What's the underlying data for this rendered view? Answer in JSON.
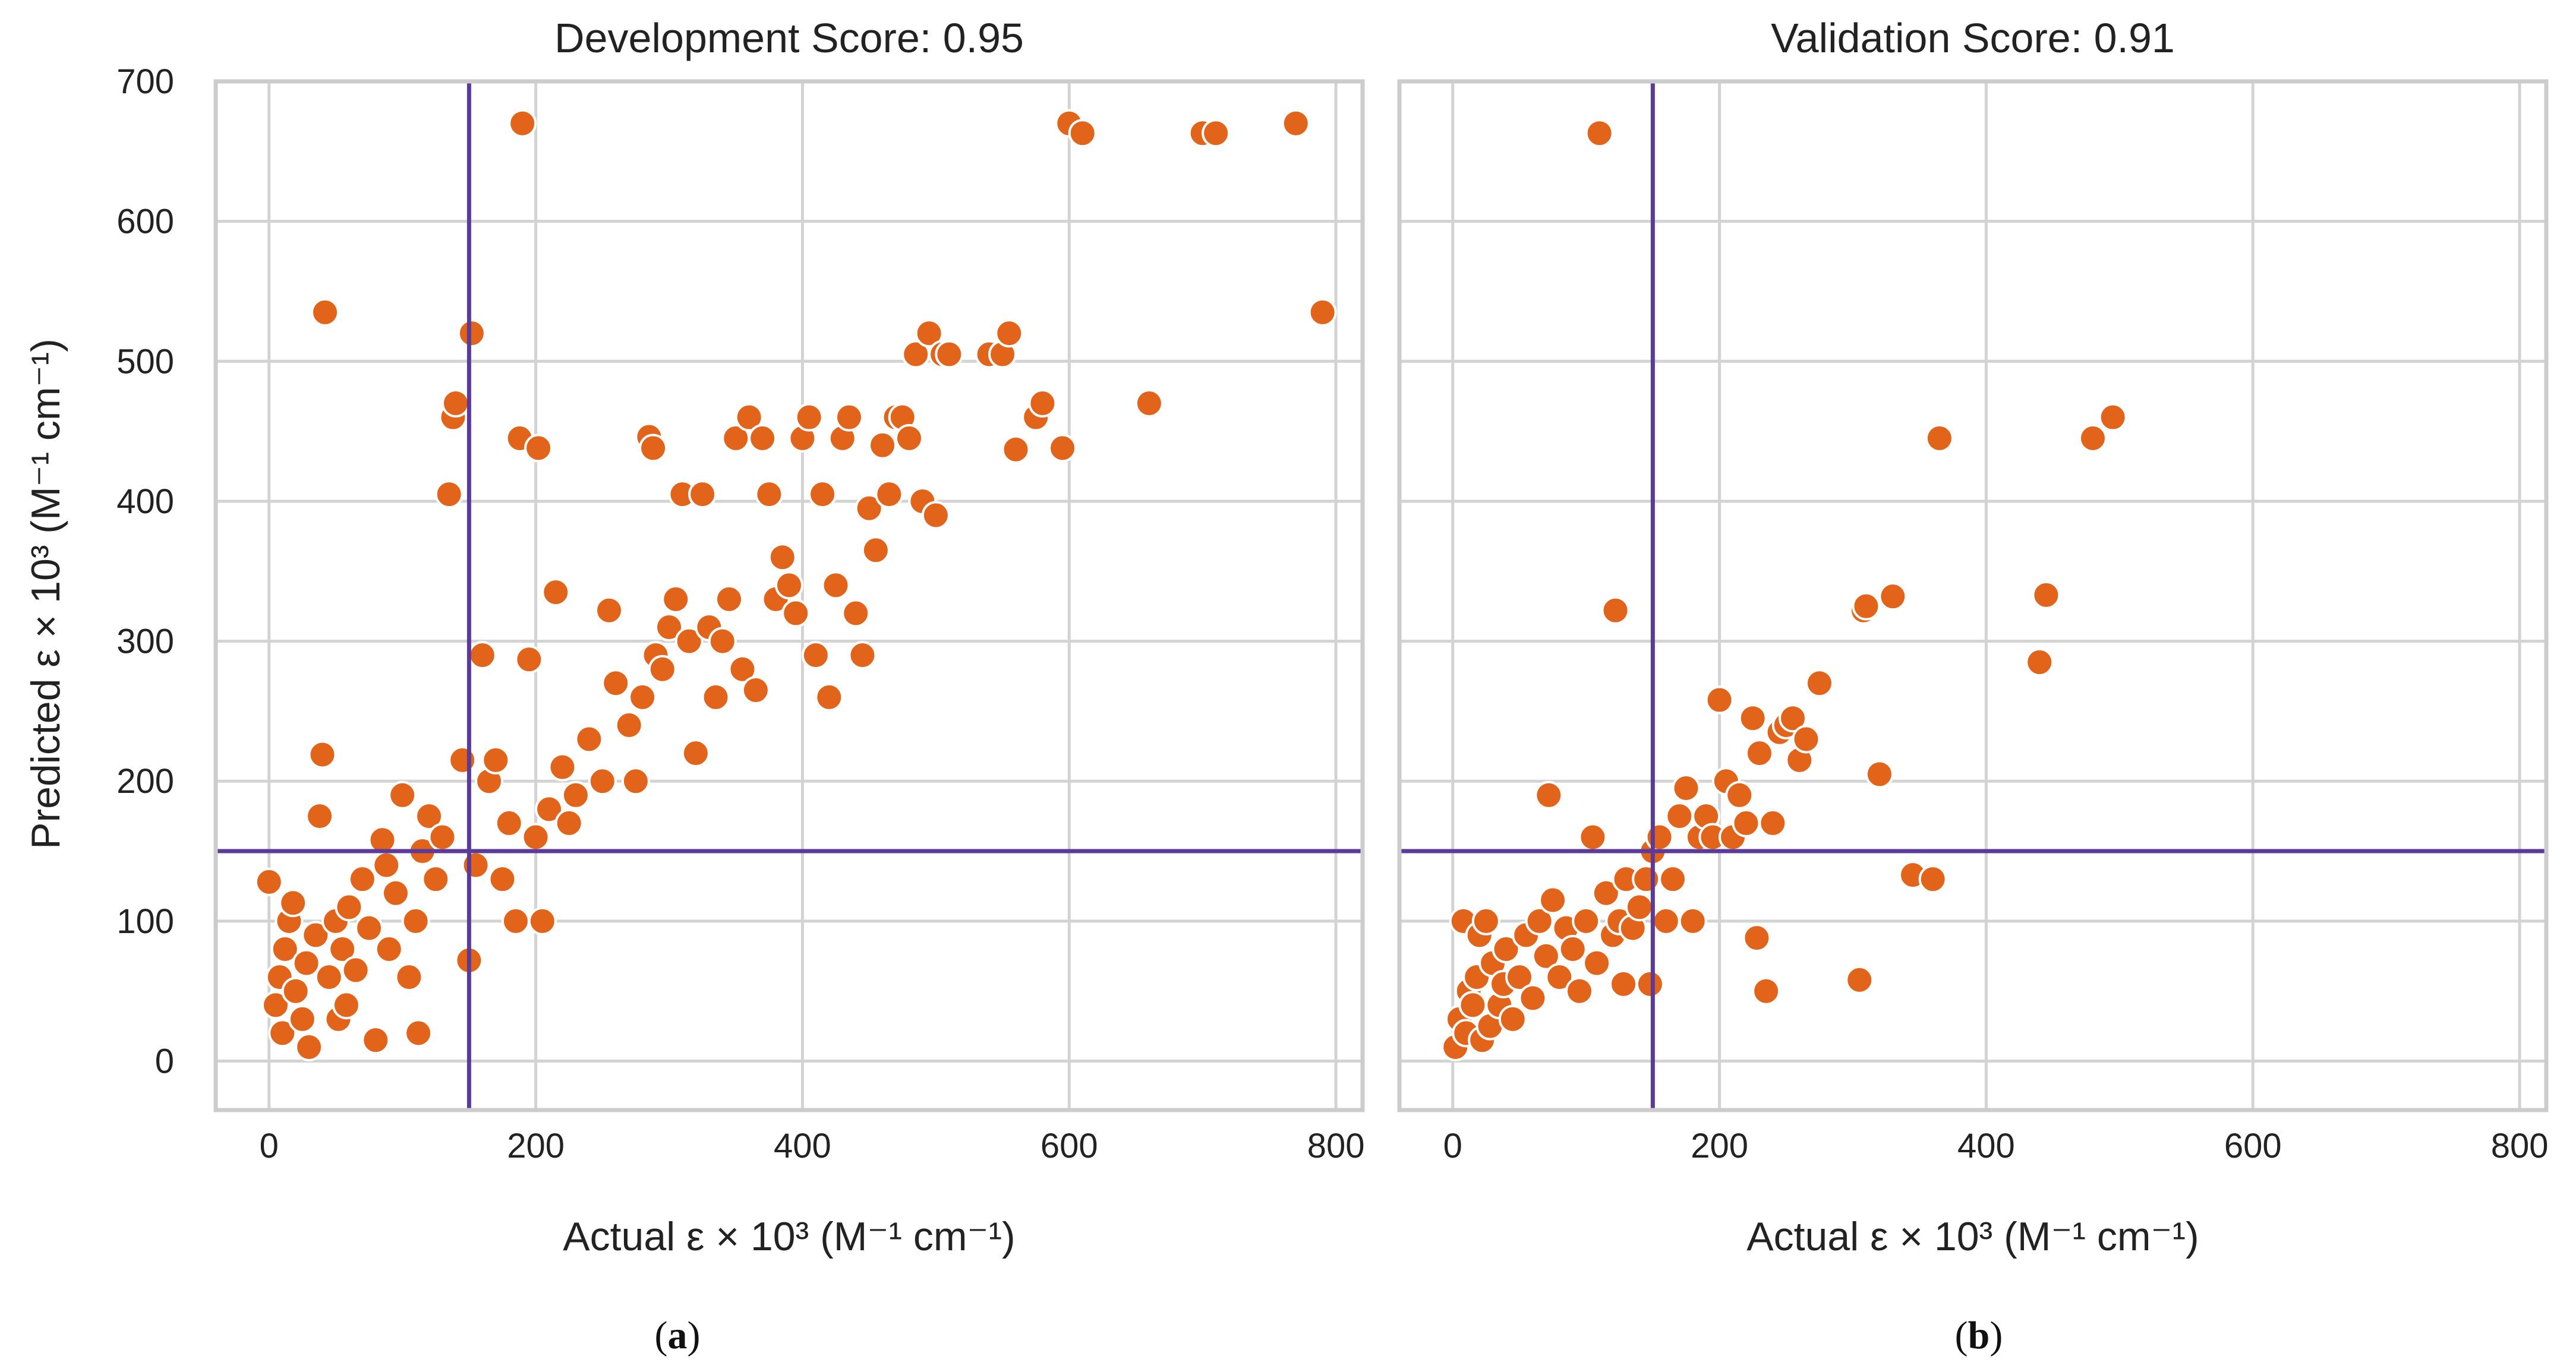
{
  "figure": {
    "panel_a_label": "a",
    "panel_b_label": "b"
  },
  "colors": {
    "points": "#E2631A",
    "reference_lines": "#5B3A9A",
    "grid": "#d3d3d3",
    "frame": "#cccccc"
  },
  "chart_data": [
    {
      "type": "scatter",
      "title": "Development Score: 0.95",
      "xlabel": "Actual ε × 10³ (M⁻¹ cm⁻¹)",
      "ylabel": "Predicted ε × 10³ (M⁻¹ cm⁻¹)",
      "xlim": [
        -40,
        820
      ],
      "ylim": [
        -35,
        700
      ],
      "xticks": [
        0,
        200,
        400,
        600,
        800
      ],
      "yticks": [
        0,
        100,
        200,
        300,
        400,
        500,
        600,
        700
      ],
      "grid": true,
      "reference_lines": {
        "x": 150,
        "y": 150
      },
      "points": [
        [
          0,
          128
        ],
        [
          5,
          40
        ],
        [
          8,
          60
        ],
        [
          10,
          20
        ],
        [
          12,
          80
        ],
        [
          15,
          100
        ],
        [
          18,
          113
        ],
        [
          20,
          50
        ],
        [
          25,
          30
        ],
        [
          28,
          70
        ],
        [
          30,
          10
        ],
        [
          35,
          90
        ],
        [
          38,
          175
        ],
        [
          40,
          219
        ],
        [
          42,
          535
        ],
        [
          45,
          60
        ],
        [
          50,
          100
        ],
        [
          52,
          30
        ],
        [
          55,
          80
        ],
        [
          58,
          40
        ],
        [
          60,
          110
        ],
        [
          65,
          65
        ],
        [
          70,
          130
        ],
        [
          75,
          95
        ],
        [
          80,
          15
        ],
        [
          85,
          158
        ],
        [
          88,
          140
        ],
        [
          90,
          80
        ],
        [
          95,
          120
        ],
        [
          100,
          190
        ],
        [
          105,
          60
        ],
        [
          110,
          100
        ],
        [
          112,
          20
        ],
        [
          115,
          150
        ],
        [
          120,
          175
        ],
        [
          125,
          130
        ],
        [
          130,
          160
        ],
        [
          135,
          405
        ],
        [
          138,
          460
        ],
        [
          140,
          470
        ],
        [
          145,
          215
        ],
        [
          150,
          72
        ],
        [
          152,
          520
        ],
        [
          155,
          140
        ],
        [
          160,
          290
        ],
        [
          165,
          200
        ],
        [
          170,
          215
        ],
        [
          175,
          130
        ],
        [
          180,
          170
        ],
        [
          185,
          100
        ],
        [
          188,
          445
        ],
        [
          190,
          670
        ],
        [
          195,
          287
        ],
        [
          200,
          160
        ],
        [
          202,
          438
        ],
        [
          205,
          100
        ],
        [
          210,
          180
        ],
        [
          215,
          335
        ],
        [
          220,
          210
        ],
        [
          225,
          170
        ],
        [
          230,
          190
        ],
        [
          240,
          230
        ],
        [
          250,
          200
        ],
        [
          255,
          322
        ],
        [
          260,
          270
        ],
        [
          270,
          240
        ],
        [
          275,
          200
        ],
        [
          280,
          260
        ],
        [
          285,
          446
        ],
        [
          288,
          438
        ],
        [
          290,
          290
        ],
        [
          295,
          280
        ],
        [
          300,
          310
        ],
        [
          305,
          330
        ],
        [
          310,
          405
        ],
        [
          315,
          300
        ],
        [
          320,
          220
        ],
        [
          325,
          405
        ],
        [
          330,
          310
        ],
        [
          335,
          260
        ],
        [
          340,
          300
        ],
        [
          345,
          330
        ],
        [
          350,
          445
        ],
        [
          355,
          280
        ],
        [
          360,
          460
        ],
        [
          365,
          265
        ],
        [
          370,
          445
        ],
        [
          375,
          405
        ],
        [
          380,
          330
        ],
        [
          385,
          360
        ],
        [
          390,
          340
        ],
        [
          395,
          320
        ],
        [
          400,
          445
        ],
        [
          405,
          460
        ],
        [
          410,
          290
        ],
        [
          415,
          405
        ],
        [
          420,
          260
        ],
        [
          425,
          340
        ],
        [
          430,
          445
        ],
        [
          435,
          460
        ],
        [
          440,
          320
        ],
        [
          445,
          290
        ],
        [
          450,
          395
        ],
        [
          455,
          365
        ],
        [
          460,
          440
        ],
        [
          465,
          405
        ],
        [
          470,
          460
        ],
        [
          475,
          460
        ],
        [
          480,
          445
        ],
        [
          485,
          505
        ],
        [
          490,
          400
        ],
        [
          495,
          520
        ],
        [
          500,
          390
        ],
        [
          505,
          505
        ],
        [
          510,
          505
        ],
        [
          540,
          505
        ],
        [
          550,
          505
        ],
        [
          555,
          520
        ],
        [
          560,
          437
        ],
        [
          575,
          460
        ],
        [
          580,
          470
        ],
        [
          595,
          438
        ],
        [
          600,
          670
        ],
        [
          610,
          663
        ],
        [
          660,
          470
        ],
        [
          700,
          663
        ],
        [
          710,
          663
        ],
        [
          770,
          670
        ],
        [
          790,
          535
        ]
      ]
    },
    {
      "type": "scatter",
      "title": "Validation Score: 0.91",
      "xlabel": "Actual ε × 10³ (M⁻¹ cm⁻¹)",
      "ylabel": "",
      "xlim": [
        -40,
        820
      ],
      "ylim": [
        -35,
        700
      ],
      "xticks": [
        0,
        200,
        400,
        600,
        800
      ],
      "yticks": [
        0,
        100,
        200,
        300,
        400,
        500,
        600,
        700
      ],
      "grid": true,
      "reference_lines": {
        "x": 150,
        "y": 150
      },
      "points": [
        [
          2,
          10
        ],
        [
          5,
          30
        ],
        [
          8,
          100
        ],
        [
          10,
          20
        ],
        [
          12,
          50
        ],
        [
          15,
          40
        ],
        [
          18,
          60
        ],
        [
          20,
          90
        ],
        [
          22,
          15
        ],
        [
          25,
          100
        ],
        [
          28,
          25
        ],
        [
          30,
          70
        ],
        [
          35,
          40
        ],
        [
          38,
          55
        ],
        [
          40,
          80
        ],
        [
          45,
          30
        ],
        [
          50,
          60
        ],
        [
          55,
          90
        ],
        [
          60,
          45
        ],
        [
          65,
          100
        ],
        [
          70,
          75
        ],
        [
          72,
          190
        ],
        [
          75,
          115
        ],
        [
          80,
          60
        ],
        [
          85,
          95
        ],
        [
          90,
          80
        ],
        [
          95,
          50
        ],
        [
          100,
          100
        ],
        [
          105,
          160
        ],
        [
          108,
          70
        ],
        [
          110,
          663
        ],
        [
          115,
          120
        ],
        [
          120,
          90
        ],
        [
          122,
          322
        ],
        [
          125,
          100
        ],
        [
          128,
          55
        ],
        [
          130,
          130
        ],
        [
          135,
          95
        ],
        [
          140,
          110
        ],
        [
          145,
          130
        ],
        [
          148,
          55
        ],
        [
          150,
          150
        ],
        [
          155,
          160
        ],
        [
          160,
          100
        ],
        [
          165,
          130
        ],
        [
          170,
          175
        ],
        [
          175,
          195
        ],
        [
          180,
          100
        ],
        [
          185,
          160
        ],
        [
          190,
          175
        ],
        [
          195,
          160
        ],
        [
          200,
          258
        ],
        [
          205,
          200
        ],
        [
          210,
          160
        ],
        [
          215,
          190
        ],
        [
          220,
          170
        ],
        [
          225,
          245
        ],
        [
          228,
          88
        ],
        [
          230,
          220
        ],
        [
          235,
          50
        ],
        [
          240,
          170
        ],
        [
          245,
          235
        ],
        [
          250,
          240
        ],
        [
          255,
          245
        ],
        [
          260,
          215
        ],
        [
          265,
          230
        ],
        [
          275,
          270
        ],
        [
          305,
          58
        ],
        [
          308,
          322
        ],
        [
          310,
          325
        ],
        [
          320,
          205
        ],
        [
          330,
          332
        ],
        [
          345,
          133
        ],
        [
          360,
          130
        ],
        [
          365,
          445
        ],
        [
          440,
          285
        ],
        [
          445,
          333
        ],
        [
          480,
          445
        ],
        [
          495,
          460
        ]
      ]
    }
  ]
}
